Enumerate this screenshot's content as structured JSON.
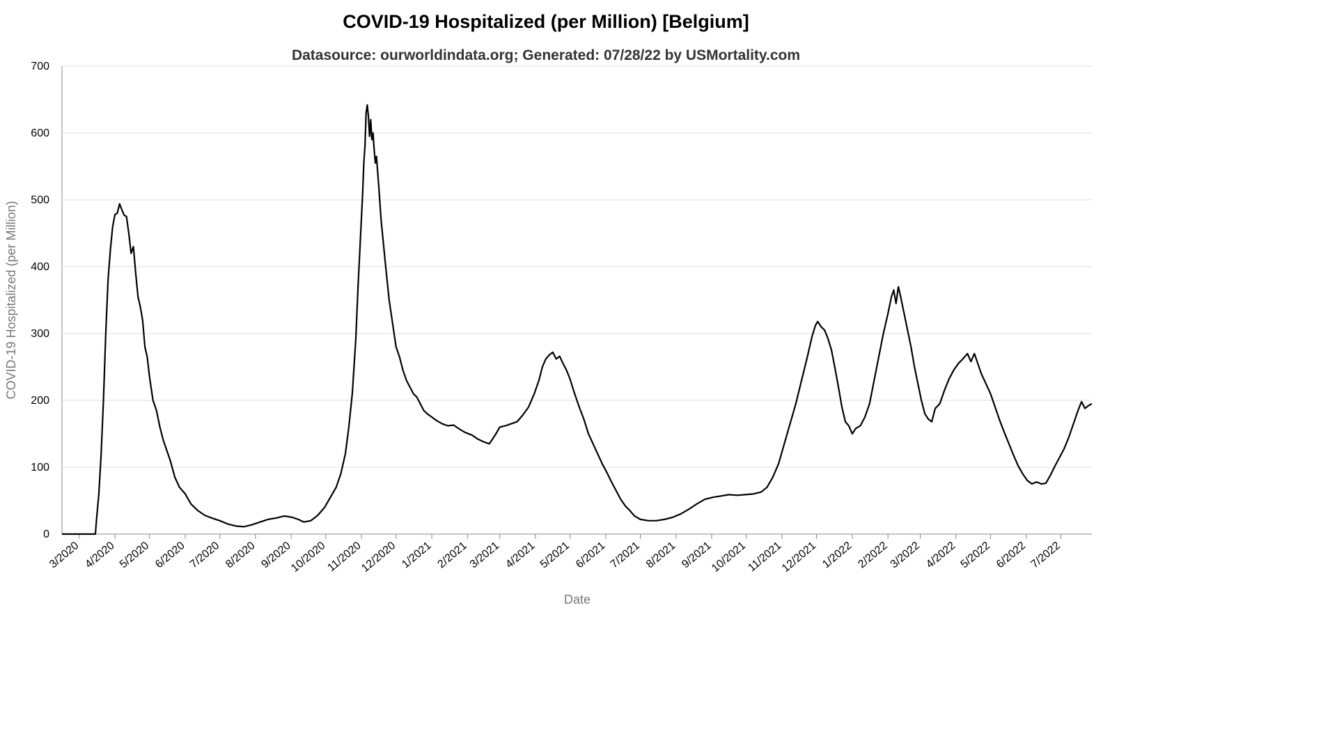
{
  "chart_data": {
    "type": "line",
    "title": "COVID-19 Hospitalized (per Million) [Belgium]",
    "subtitle": "Datasource: ourworldindata.org; Generated: 07/28/22 by USMortality.com",
    "xlabel": "Date",
    "ylabel": "COVID-19 Hospitalized (per Million)",
    "ylim": [
      0,
      700
    ],
    "yticks": [
      0,
      100,
      200,
      300,
      400,
      500,
      600,
      700
    ],
    "x_domain": [
      "2020-02-15",
      "2022-07-28"
    ],
    "x_ticks": [
      {
        "date": "2020-03-01",
        "label": "3/2020"
      },
      {
        "date": "2020-04-01",
        "label": "4/2020"
      },
      {
        "date": "2020-05-01",
        "label": "5/2020"
      },
      {
        "date": "2020-06-01",
        "label": "6/2020"
      },
      {
        "date": "2020-07-01",
        "label": "7/2020"
      },
      {
        "date": "2020-08-01",
        "label": "8/2020"
      },
      {
        "date": "2020-09-01",
        "label": "9/2020"
      },
      {
        "date": "2020-10-01",
        "label": "10/2020"
      },
      {
        "date": "2020-11-01",
        "label": "11/2020"
      },
      {
        "date": "2020-12-01",
        "label": "12/2020"
      },
      {
        "date": "2021-01-01",
        "label": "1/2021"
      },
      {
        "date": "2021-02-01",
        "label": "2/2021"
      },
      {
        "date": "2021-03-01",
        "label": "3/2021"
      },
      {
        "date": "2021-04-01",
        "label": "4/2021"
      },
      {
        "date": "2021-05-01",
        "label": "5/2021"
      },
      {
        "date": "2021-06-01",
        "label": "6/2021"
      },
      {
        "date": "2021-07-01",
        "label": "7/2021"
      },
      {
        "date": "2021-08-01",
        "label": "8/2021"
      },
      {
        "date": "2021-09-01",
        "label": "9/2021"
      },
      {
        "date": "2021-10-01",
        "label": "10/2021"
      },
      {
        "date": "2021-11-01",
        "label": "11/2021"
      },
      {
        "date": "2021-12-01",
        "label": "12/2021"
      },
      {
        "date": "2022-01-01",
        "label": "1/2022"
      },
      {
        "date": "2022-02-01",
        "label": "2/2022"
      },
      {
        "date": "2022-03-01",
        "label": "3/2022"
      },
      {
        "date": "2022-04-01",
        "label": "4/2022"
      },
      {
        "date": "2022-05-01",
        "label": "5/2022"
      },
      {
        "date": "2022-06-01",
        "label": "6/2022"
      },
      {
        "date": "2022-07-01",
        "label": "7/2022"
      }
    ],
    "grid": "horizontal",
    "line_color": "#000000",
    "series": [
      {
        "name": "",
        "points": [
          [
            "2020-02-15",
            0
          ],
          [
            "2020-03-15",
            0
          ],
          [
            "2020-03-16",
            22
          ],
          [
            "2020-03-18",
            60
          ],
          [
            "2020-03-20",
            120
          ],
          [
            "2020-03-22",
            200
          ],
          [
            "2020-03-24",
            300
          ],
          [
            "2020-03-26",
            380
          ],
          [
            "2020-03-28",
            425
          ],
          [
            "2020-03-30",
            460
          ],
          [
            "2020-04-01",
            478
          ],
          [
            "2020-04-03",
            480
          ],
          [
            "2020-04-05",
            494
          ],
          [
            "2020-04-07",
            485
          ],
          [
            "2020-04-09",
            477
          ],
          [
            "2020-04-11",
            475
          ],
          [
            "2020-04-13",
            450
          ],
          [
            "2020-04-15",
            420
          ],
          [
            "2020-04-17",
            430
          ],
          [
            "2020-04-19",
            390
          ],
          [
            "2020-04-21",
            355
          ],
          [
            "2020-04-23",
            340
          ],
          [
            "2020-04-25",
            320
          ],
          [
            "2020-04-27",
            280
          ],
          [
            "2020-04-29",
            265
          ],
          [
            "2020-05-01",
            235
          ],
          [
            "2020-05-04",
            200
          ],
          [
            "2020-05-07",
            185
          ],
          [
            "2020-05-10",
            160
          ],
          [
            "2020-05-13",
            140
          ],
          [
            "2020-05-16",
            125
          ],
          [
            "2020-05-19",
            110
          ],
          [
            "2020-05-23",
            85
          ],
          [
            "2020-05-27",
            70
          ],
          [
            "2020-06-01",
            60
          ],
          [
            "2020-06-06",
            45
          ],
          [
            "2020-06-12",
            35
          ],
          [
            "2020-06-18",
            28
          ],
          [
            "2020-06-24",
            24
          ],
          [
            "2020-07-01",
            20
          ],
          [
            "2020-07-08",
            15
          ],
          [
            "2020-07-15",
            12
          ],
          [
            "2020-07-22",
            11
          ],
          [
            "2020-07-29",
            14
          ],
          [
            "2020-08-05",
            18
          ],
          [
            "2020-08-12",
            22
          ],
          [
            "2020-08-19",
            24
          ],
          [
            "2020-08-26",
            27
          ],
          [
            "2020-09-02",
            25
          ],
          [
            "2020-09-07",
            22
          ],
          [
            "2020-09-12",
            18
          ],
          [
            "2020-09-18",
            20
          ],
          [
            "2020-09-24",
            28
          ],
          [
            "2020-09-30",
            40
          ],
          [
            "2020-10-05",
            55
          ],
          [
            "2020-10-10",
            70
          ],
          [
            "2020-10-14",
            90
          ],
          [
            "2020-10-18",
            120
          ],
          [
            "2020-10-21",
            160
          ],
          [
            "2020-10-24",
            210
          ],
          [
            "2020-10-27",
            290
          ],
          [
            "2020-10-29",
            370
          ],
          [
            "2020-10-31",
            440
          ],
          [
            "2020-11-02",
            510
          ],
          [
            "2020-11-03",
            555
          ],
          [
            "2020-11-04",
            580
          ],
          [
            "2020-11-05",
            630
          ],
          [
            "2020-11-06",
            642
          ],
          [
            "2020-11-07",
            625
          ],
          [
            "2020-11-08",
            595
          ],
          [
            "2020-11-09",
            620
          ],
          [
            "2020-11-10",
            590
          ],
          [
            "2020-11-11",
            600
          ],
          [
            "2020-11-12",
            575
          ],
          [
            "2020-11-13",
            555
          ],
          [
            "2020-11-14",
            565
          ],
          [
            "2020-11-16",
            520
          ],
          [
            "2020-11-18",
            470
          ],
          [
            "2020-11-20",
            435
          ],
          [
            "2020-11-22",
            400
          ],
          [
            "2020-11-25",
            350
          ],
          [
            "2020-11-28",
            315
          ],
          [
            "2020-12-01",
            280
          ],
          [
            "2020-12-04",
            265
          ],
          [
            "2020-12-07",
            245
          ],
          [
            "2020-12-10",
            230
          ],
          [
            "2020-12-13",
            220
          ],
          [
            "2020-12-16",
            210
          ],
          [
            "2020-12-19",
            205
          ],
          [
            "2020-12-22",
            195
          ],
          [
            "2020-12-25",
            185
          ],
          [
            "2020-12-28",
            180
          ],
          [
            "2021-01-01",
            175
          ],
          [
            "2021-01-05",
            170
          ],
          [
            "2021-01-10",
            165
          ],
          [
            "2021-01-15",
            162
          ],
          [
            "2021-01-20",
            163
          ],
          [
            "2021-01-25",
            157
          ],
          [
            "2021-01-30",
            152
          ],
          [
            "2021-02-05",
            148
          ],
          [
            "2021-02-10",
            142
          ],
          [
            "2021-02-15",
            138
          ],
          [
            "2021-02-20",
            135
          ],
          [
            "2021-02-25",
            148
          ],
          [
            "2021-03-01",
            160
          ],
          [
            "2021-03-06",
            162
          ],
          [
            "2021-03-11",
            165
          ],
          [
            "2021-03-16",
            168
          ],
          [
            "2021-03-21",
            178
          ],
          [
            "2021-03-26",
            190
          ],
          [
            "2021-03-31",
            210
          ],
          [
            "2021-04-04",
            230
          ],
          [
            "2021-04-07",
            250
          ],
          [
            "2021-04-10",
            262
          ],
          [
            "2021-04-13",
            268
          ],
          [
            "2021-04-16",
            272
          ],
          [
            "2021-04-19",
            262
          ],
          [
            "2021-04-22",
            266
          ],
          [
            "2021-04-25",
            255
          ],
          [
            "2021-04-28",
            245
          ],
          [
            "2021-05-01",
            232
          ],
          [
            "2021-05-05",
            210
          ],
          [
            "2021-05-09",
            190
          ],
          [
            "2021-05-13",
            172
          ],
          [
            "2021-05-17",
            150
          ],
          [
            "2021-05-21",
            135
          ],
          [
            "2021-05-25",
            120
          ],
          [
            "2021-05-29",
            105
          ],
          [
            "2021-06-02",
            92
          ],
          [
            "2021-06-06",
            78
          ],
          [
            "2021-06-10",
            65
          ],
          [
            "2021-06-14",
            52
          ],
          [
            "2021-06-18",
            42
          ],
          [
            "2021-06-22",
            35
          ],
          [
            "2021-06-26",
            27
          ],
          [
            "2021-07-01",
            22
          ],
          [
            "2021-07-08",
            20
          ],
          [
            "2021-07-15",
            20
          ],
          [
            "2021-07-22",
            22
          ],
          [
            "2021-07-29",
            25
          ],
          [
            "2021-08-05",
            30
          ],
          [
            "2021-08-12",
            37
          ],
          [
            "2021-08-19",
            45
          ],
          [
            "2021-08-26",
            52
          ],
          [
            "2021-09-02",
            55
          ],
          [
            "2021-09-09",
            57
          ],
          [
            "2021-09-16",
            59
          ],
          [
            "2021-09-23",
            58
          ],
          [
            "2021-09-30",
            59
          ],
          [
            "2021-10-07",
            60
          ],
          [
            "2021-10-14",
            63
          ],
          [
            "2021-10-19",
            70
          ],
          [
            "2021-10-24",
            85
          ],
          [
            "2021-10-29",
            105
          ],
          [
            "2021-11-03",
            135
          ],
          [
            "2021-11-08",
            165
          ],
          [
            "2021-11-13",
            195
          ],
          [
            "2021-11-18",
            230
          ],
          [
            "2021-11-23",
            265
          ],
          [
            "2021-11-27",
            295
          ],
          [
            "2021-11-30",
            312
          ],
          [
            "2021-12-02",
            318
          ],
          [
            "2021-12-05",
            310
          ],
          [
            "2021-12-08",
            305
          ],
          [
            "2021-12-11",
            292
          ],
          [
            "2021-12-14",
            275
          ],
          [
            "2021-12-17",
            248
          ],
          [
            "2021-12-20",
            220
          ],
          [
            "2021-12-23",
            190
          ],
          [
            "2021-12-26",
            168
          ],
          [
            "2021-12-29",
            162
          ],
          [
            "2022-01-01",
            150
          ],
          [
            "2022-01-04",
            158
          ],
          [
            "2022-01-08",
            162
          ],
          [
            "2022-01-12",
            175
          ],
          [
            "2022-01-16",
            195
          ],
          [
            "2022-01-20",
            230
          ],
          [
            "2022-01-24",
            265
          ],
          [
            "2022-01-28",
            300
          ],
          [
            "2022-02-01",
            330
          ],
          [
            "2022-02-04",
            355
          ],
          [
            "2022-02-06",
            365
          ],
          [
            "2022-02-08",
            345
          ],
          [
            "2022-02-10",
            370
          ],
          [
            "2022-02-12",
            355
          ],
          [
            "2022-02-15",
            330
          ],
          [
            "2022-02-18",
            305
          ],
          [
            "2022-02-21",
            280
          ],
          [
            "2022-02-24",
            250
          ],
          [
            "2022-02-27",
            225
          ],
          [
            "2022-03-02",
            200
          ],
          [
            "2022-03-05",
            180
          ],
          [
            "2022-03-08",
            172
          ],
          [
            "2022-03-11",
            168
          ],
          [
            "2022-03-14",
            188
          ],
          [
            "2022-03-18",
            195
          ],
          [
            "2022-03-22",
            215
          ],
          [
            "2022-03-26",
            232
          ],
          [
            "2022-03-30",
            245
          ],
          [
            "2022-04-03",
            255
          ],
          [
            "2022-04-07",
            262
          ],
          [
            "2022-04-11",
            270
          ],
          [
            "2022-04-14",
            258
          ],
          [
            "2022-04-17",
            270
          ],
          [
            "2022-04-20",
            255
          ],
          [
            "2022-04-23",
            240
          ],
          [
            "2022-04-27",
            225
          ],
          [
            "2022-05-01",
            210
          ],
          [
            "2022-05-05",
            190
          ],
          [
            "2022-05-09",
            170
          ],
          [
            "2022-05-13",
            152
          ],
          [
            "2022-05-17",
            135
          ],
          [
            "2022-05-21",
            118
          ],
          [
            "2022-05-25",
            102
          ],
          [
            "2022-05-29",
            90
          ],
          [
            "2022-06-02",
            80
          ],
          [
            "2022-06-06",
            75
          ],
          [
            "2022-06-10",
            78
          ],
          [
            "2022-06-14",
            75
          ],
          [
            "2022-06-18",
            76
          ],
          [
            "2022-06-22",
            88
          ],
          [
            "2022-06-26",
            102
          ],
          [
            "2022-06-30",
            115
          ],
          [
            "2022-07-04",
            128
          ],
          [
            "2022-07-08",
            145
          ],
          [
            "2022-07-12",
            165
          ],
          [
            "2022-07-16",
            185
          ],
          [
            "2022-07-19",
            198
          ],
          [
            "2022-07-22",
            188
          ],
          [
            "2022-07-25",
            192
          ],
          [
            "2022-07-28",
            195
          ]
        ]
      }
    ]
  }
}
